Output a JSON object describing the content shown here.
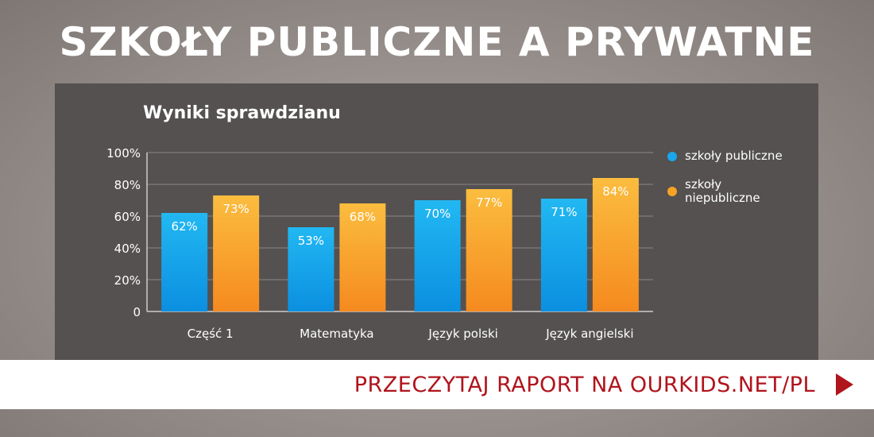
{
  "headline": "SZKOŁY PUBLICZNE A PRYWATNE",
  "cta": "PRZECZYTAJ RAPORT NA OURKIDS.NET/PL",
  "colors": {
    "public": "#1aa6ea",
    "private": "#f7a224",
    "panel": "#545150",
    "cta": "#b0141c"
  },
  "chart_data": {
    "type": "bar",
    "title": "Wyniki sprawdzianu",
    "categories": [
      "Część 1",
      "Matematyka",
      "Język polski",
      "Język angielski"
    ],
    "series": [
      {
        "name": "szkoły publiczne",
        "values": [
          62,
          53,
          70,
          71
        ],
        "labels": [
          "62%",
          "53%",
          "70%",
          "71%"
        ]
      },
      {
        "name": "szkoły niepubliczne",
        "values": [
          73,
          68,
          77,
          84
        ],
        "labels": [
          "73%",
          "68%",
          "77%",
          "84%"
        ]
      }
    ],
    "yticks": [
      "0",
      "20%",
      "40%",
      "60%",
      "80%",
      "100%"
    ],
    "ylim": [
      0,
      100
    ],
    "grid": true,
    "legend": "right"
  }
}
